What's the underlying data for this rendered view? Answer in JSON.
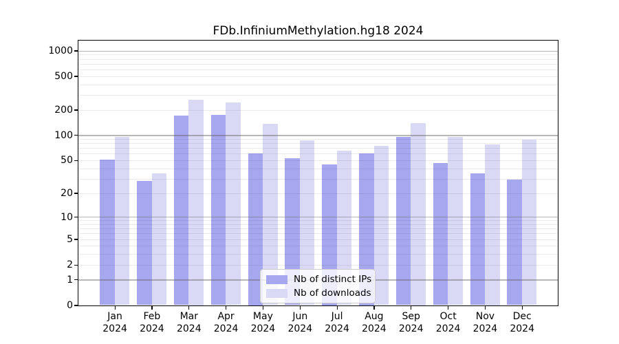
{
  "chart_data": {
    "type": "bar",
    "title": "FDb.InfiniumMethylation.hg18 2024",
    "months": [
      "Jan",
      "Feb",
      "Mar",
      "Apr",
      "May",
      "Jun",
      "Jul",
      "Aug",
      "Sep",
      "Oct",
      "Nov",
      "Dec"
    ],
    "year": "2024",
    "series": [
      {
        "name": "Nb of distinct IPs",
        "color": "#a7a7f0",
        "values": [
          51,
          28,
          170,
          175,
          61,
          53,
          45,
          61,
          95,
          46,
          35,
          29
        ]
      },
      {
        "name": "Nb of downloads",
        "color": "#d9d9f6",
        "values": [
          95,
          35,
          265,
          245,
          135,
          87,
          65,
          75,
          140,
          95,
          78,
          88
        ]
      }
    ],
    "yscale": "log1p",
    "y_ticks": [
      0,
      1,
      2,
      5,
      10,
      20,
      50,
      100,
      200,
      500,
      1000
    ],
    "ylim": [
      0,
      1335
    ],
    "grid": true,
    "legend_position": "lower center"
  }
}
